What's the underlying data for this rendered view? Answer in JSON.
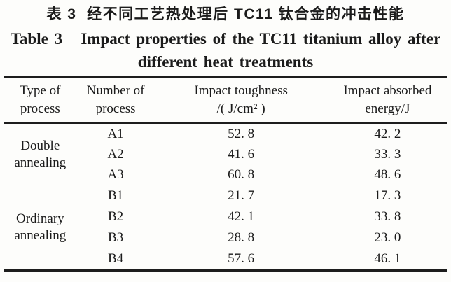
{
  "title": {
    "zh": "表 3  经不同工艺热处理后 TC11 钛合金的冲击性能",
    "en_line1": "Table 3   Impact properties of the TC11 titanium alloy after",
    "en_line2": "different heat treatments"
  },
  "table": {
    "headers": [
      {
        "line1": "Type of",
        "line2": "process"
      },
      {
        "line1": "Number of",
        "line2": "process"
      },
      {
        "line1": "Impact toughness",
        "line2": "/( J/cm² )"
      },
      {
        "line1": "Impact absorbed",
        "line2": "energy/J"
      }
    ],
    "groups": [
      {
        "type": "Double annealing",
        "rows": [
          {
            "number": "A1",
            "toughness": "52. 8",
            "energy": "42. 2"
          },
          {
            "number": "A2",
            "toughness": "41. 6",
            "energy": "33. 3"
          },
          {
            "number": "A3",
            "toughness": "60. 8",
            "energy": "48. 6"
          }
        ]
      },
      {
        "type": "Ordinary annealing",
        "rows": [
          {
            "number": "B1",
            "toughness": "21. 7",
            "energy": "17. 3"
          },
          {
            "number": "B2",
            "toughness": "42. 1",
            "energy": "33. 8"
          },
          {
            "number": "B3",
            "toughness": "28. 8",
            "energy": "23. 0"
          },
          {
            "number": "B4",
            "toughness": "57. 6",
            "energy": "46. 1"
          }
        ]
      }
    ]
  }
}
